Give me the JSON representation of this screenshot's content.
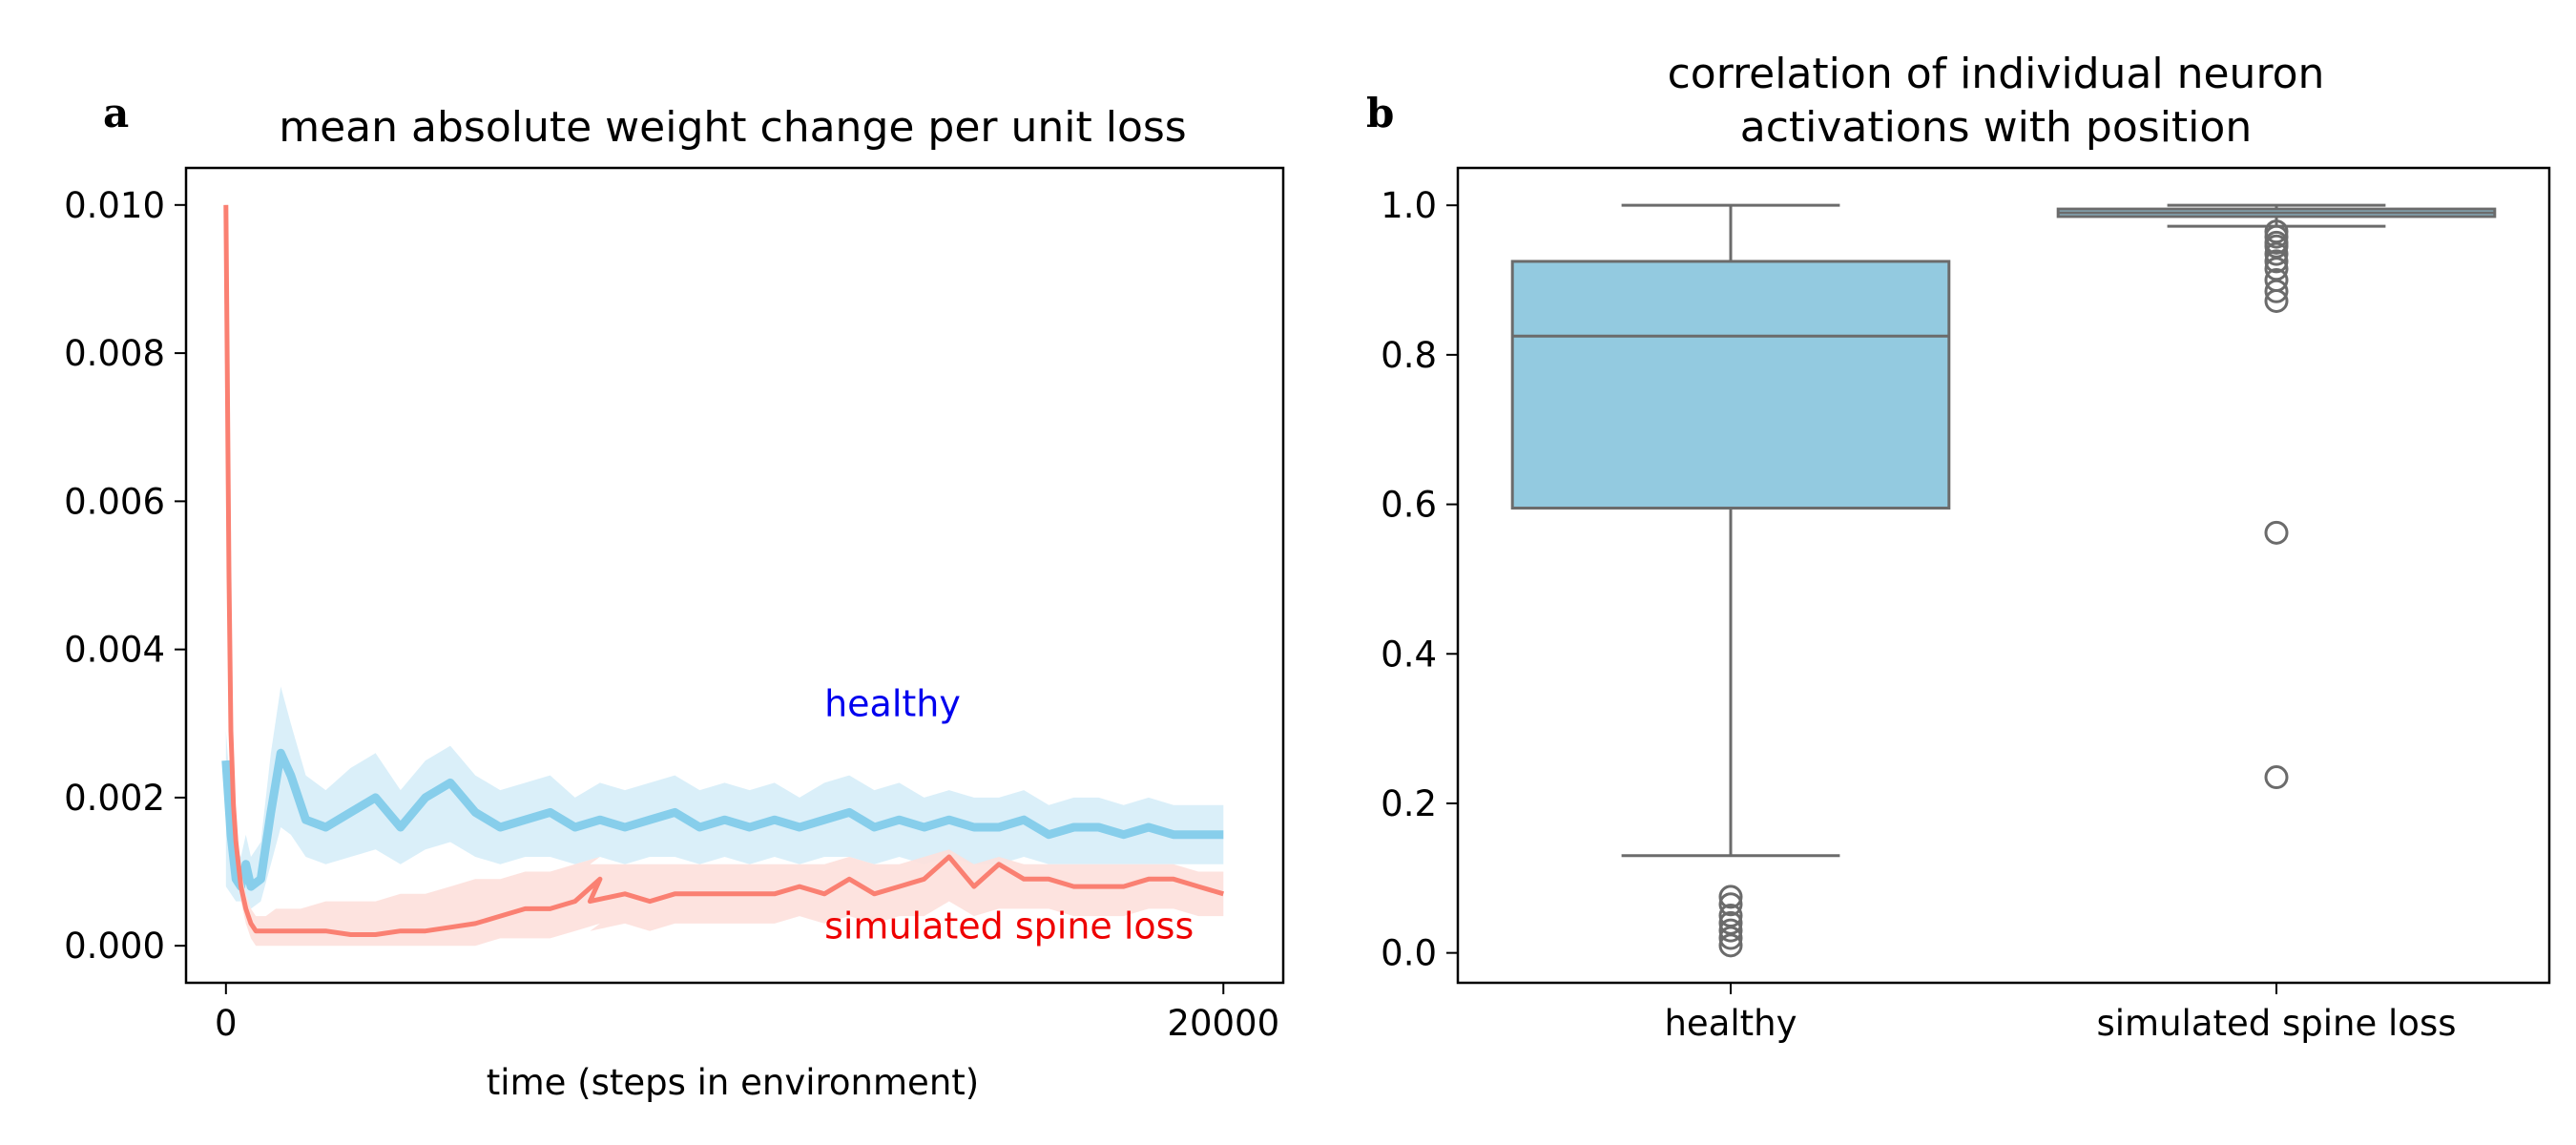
{
  "chart_data": [
    {
      "panel": "a",
      "type": "line",
      "title": "mean absolute weight change per unit loss",
      "xlabel": "time (steps in environment)",
      "ylabel": "",
      "xlim": [
        -800,
        21200
      ],
      "ylim": [
        -0.0005,
        0.0105
      ],
      "xticks": [
        0,
        20000
      ],
      "xtick_labels": [
        "0",
        "20000"
      ],
      "yticks": [
        0.0,
        0.002,
        0.004,
        0.006,
        0.008,
        0.01
      ],
      "ytick_labels": [
        "0.000",
        "0.002",
        "0.004",
        "0.006",
        "0.008",
        "0.010"
      ],
      "grid": false,
      "annotations": [
        {
          "text": "healthy",
          "color": "#0000ee",
          "x": 12000,
          "y": 0.0031
        },
        {
          "text": "simulated spine loss",
          "color": "#ee0000",
          "x": 12000,
          "y": 0.0001
        }
      ],
      "series": [
        {
          "name": "healthy",
          "color": "#87ceeb",
          "band_color": "#d6edf8",
          "x": [
            0,
            100,
            200,
            300,
            400,
            500,
            700,
            900,
            1100,
            1300,
            1600,
            2000,
            2500,
            3000,
            3500,
            4000,
            4500,
            5000,
            5500,
            6000,
            6500,
            7000,
            7500,
            8000,
            8500,
            9000,
            9500,
            10000,
            10500,
            11000,
            11500,
            12000,
            12500,
            13000,
            13500,
            14000,
            14500,
            15000,
            15500,
            16000,
            16500,
            17000,
            17500,
            18000,
            18500,
            19000,
            19500,
            20000
          ],
          "values": [
            0.0025,
            0.0015,
            0.0009,
            0.0008,
            0.0011,
            0.0008,
            0.0009,
            0.0018,
            0.0026,
            0.0023,
            0.0017,
            0.0016,
            0.0018,
            0.002,
            0.0016,
            0.002,
            0.0022,
            0.0018,
            0.0016,
            0.0017,
            0.0018,
            0.0016,
            0.0017,
            0.0016,
            0.0017,
            0.0018,
            0.0016,
            0.0017,
            0.0016,
            0.0017,
            0.0016,
            0.0017,
            0.0018,
            0.0016,
            0.0017,
            0.0016,
            0.0017,
            0.0016,
            0.0016,
            0.0017,
            0.0015,
            0.0016,
            0.0016,
            0.0015,
            0.0016,
            0.0015,
            0.0015,
            0.0015
          ],
          "band_upper": [
            0.0029,
            0.002,
            0.0013,
            0.0012,
            0.0015,
            0.0012,
            0.0014,
            0.0026,
            0.0035,
            0.003,
            0.0023,
            0.0021,
            0.0024,
            0.0026,
            0.0021,
            0.0025,
            0.0027,
            0.0023,
            0.0021,
            0.0022,
            0.0023,
            0.002,
            0.0022,
            0.0021,
            0.0022,
            0.0023,
            0.0021,
            0.0022,
            0.0021,
            0.0022,
            0.002,
            0.0022,
            0.0023,
            0.0021,
            0.0022,
            0.002,
            0.0021,
            0.002,
            0.002,
            0.0021,
            0.0019,
            0.002,
            0.002,
            0.0019,
            0.002,
            0.0019,
            0.0019,
            0.0019
          ],
          "band_lower": [
            0.0008,
            0.0007,
            0.0006,
            0.0006,
            0.0007,
            0.0005,
            0.0006,
            0.0011,
            0.0016,
            0.0015,
            0.0012,
            0.0011,
            0.0012,
            0.0013,
            0.0011,
            0.0013,
            0.0014,
            0.0012,
            0.0011,
            0.0012,
            0.0012,
            0.0011,
            0.0012,
            0.0011,
            0.0012,
            0.0012,
            0.0011,
            0.0012,
            0.0011,
            0.0012,
            0.0011,
            0.0012,
            0.0012,
            0.0011,
            0.0012,
            0.0011,
            0.0012,
            0.0011,
            0.0011,
            0.0012,
            0.0011,
            0.0011,
            0.0011,
            0.0011,
            0.0011,
            0.0011,
            0.0011,
            0.0011
          ]
        },
        {
          "name": "simulated spine loss",
          "color": "#fa8072",
          "band_color": "#fde0dc",
          "x": [
            0,
            30,
            60,
            100,
            150,
            200,
            250,
            300,
            400,
            500,
            600,
            800,
            1000,
            1500,
            2000,
            2500,
            3000,
            3500,
            4000,
            4500,
            5000,
            5500,
            6000,
            6500,
            7000,
            7500,
            7300,
            8000,
            8500,
            9000,
            9500,
            10000,
            10500,
            11000,
            11500,
            12000,
            12500,
            13000,
            13500,
            14000,
            14500,
            15000,
            15500,
            16000,
            16500,
            17000,
            17500,
            18000,
            18500,
            19000,
            19500,
            20000
          ],
          "values": [
            0.01,
            0.0075,
            0.005,
            0.0029,
            0.0019,
            0.0014,
            0.0011,
            0.0008,
            0.0005,
            0.0003,
            0.0002,
            0.0002,
            0.0002,
            0.0002,
            0.0002,
            0.00015,
            0.00015,
            0.0002,
            0.0002,
            0.00025,
            0.0003,
            0.0004,
            0.0005,
            0.0005,
            0.0006,
            0.0009,
            0.0006,
            0.0007,
            0.0006,
            0.0007,
            0.0007,
            0.0007,
            0.0007,
            0.0007,
            0.0008,
            0.0007,
            0.0009,
            0.0007,
            0.0008,
            0.0009,
            0.0012,
            0.0008,
            0.0011,
            0.0009,
            0.0009,
            0.0008,
            0.0008,
            0.0008,
            0.0009,
            0.0009,
            0.0008,
            0.0007
          ],
          "band_upper": [
            0.01,
            0.0078,
            0.0052,
            0.0031,
            0.0021,
            0.0016,
            0.0013,
            0.001,
            0.0007,
            0.0005,
            0.0004,
            0.0004,
            0.0005,
            0.0005,
            0.0006,
            0.0006,
            0.0006,
            0.0007,
            0.0007,
            0.0008,
            0.0009,
            0.0009,
            0.001,
            0.001,
            0.0011,
            0.0012,
            0.0011,
            0.0011,
            0.0011,
            0.0011,
            0.0011,
            0.0011,
            0.0011,
            0.0011,
            0.0011,
            0.0011,
            0.0012,
            0.0011,
            0.0011,
            0.0012,
            0.0013,
            0.0011,
            0.0012,
            0.0011,
            0.0011,
            0.0011,
            0.0011,
            0.0011,
            0.0011,
            0.0011,
            0.001,
            0.001
          ],
          "band_lower": [
            0.0098,
            0.0072,
            0.0048,
            0.0027,
            0.0017,
            0.0012,
            0.0009,
            0.0006,
            0.0003,
            0.0001,
            0.0,
            0.0,
            0.0,
            0.0,
            0.0,
            0.0,
            0.0,
            0.0,
            0.0,
            0.0,
            0.0,
            0.0001,
            0.0001,
            0.0001,
            0.0002,
            0.0003,
            0.0002,
            0.0003,
            0.0002,
            0.0003,
            0.0003,
            0.0003,
            0.0003,
            0.0003,
            0.0004,
            0.0003,
            0.0004,
            0.0003,
            0.0004,
            0.0004,
            0.0006,
            0.0004,
            0.0005,
            0.0005,
            0.0005,
            0.0004,
            0.0004,
            0.0004,
            0.0005,
            0.0005,
            0.0004,
            0.0004
          ]
        }
      ]
    },
    {
      "panel": "b",
      "type": "box",
      "title": "correlation of individual neuron\nactivations with position",
      "title_lines": [
        "correlation of individual neuron",
        "activations with position"
      ],
      "xlabel": "",
      "ylabel": "",
      "categories": [
        "healthy",
        "simulated spine loss"
      ],
      "ylim": [
        -0.04,
        1.05
      ],
      "yticks": [
        0.0,
        0.2,
        0.4,
        0.6,
        0.8,
        1.0
      ],
      "ytick_labels": [
        "0.0",
        "0.2",
        "0.4",
        "0.6",
        "0.8",
        "1.0"
      ],
      "grid": false,
      "boxes": [
        {
          "name": "healthy",
          "color": "#93cae0",
          "whisker_low": 0.13,
          "q1": 0.595,
          "median": 0.825,
          "q3": 0.925,
          "whisker_high": 1.0,
          "outliers": [
            0.075,
            0.065,
            0.05,
            0.04,
            0.03,
            0.02,
            0.01
          ]
        },
        {
          "name": "simulated spine loss",
          "color": "#93cae0",
          "whisker_low": 0.972,
          "q1": 0.985,
          "median": 0.99,
          "q3": 0.995,
          "whisker_high": 1.0,
          "outliers": [
            0.965,
            0.958,
            0.95,
            0.945,
            0.935,
            0.925,
            0.915,
            0.9,
            0.885,
            0.872,
            0.562,
            0.235
          ]
        }
      ]
    }
  ]
}
